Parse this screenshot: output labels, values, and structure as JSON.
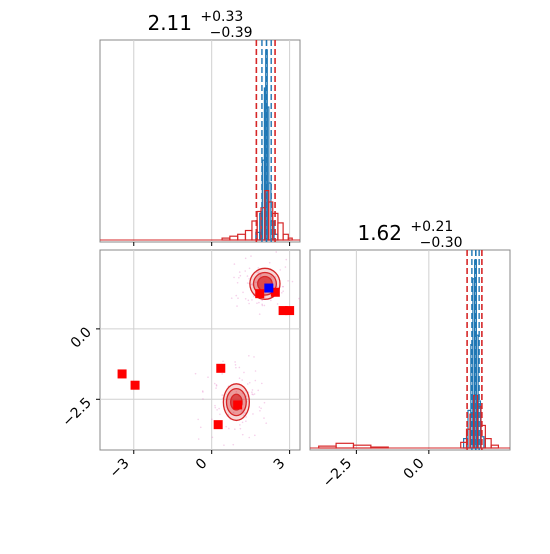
{
  "chart_data": [
    {
      "type": "histogram",
      "panel": "marginal-param-1",
      "title": {
        "value": "2.11",
        "plus": "+0.33",
        "minus": "−0.39"
      },
      "xlim": [
        -4.3,
        3.4
      ],
      "x_ticks": [
        "−3",
        "0",
        "3"
      ],
      "quantiles": {
        "lower": 1.72,
        "median": 2.11,
        "upper": 2.44
      },
      "median_line_color": "#1f77b4",
      "quantile_line_color": "#d62728",
      "series": [
        {
          "color": "#1f77b4",
          "bins": [
            {
              "x0": 1.7,
              "x1": 1.85,
              "h": 0.04
            },
            {
              "x0": 1.85,
              "x1": 1.95,
              "h": 0.14
            },
            {
              "x0": 1.95,
              "x1": 2.03,
              "h": 0.42
            },
            {
              "x0": 2.03,
              "x1": 2.08,
              "h": 0.8
            },
            {
              "x0": 2.08,
              "x1": 2.14,
              "h": 1.0
            },
            {
              "x0": 2.14,
              "x1": 2.2,
              "h": 0.7
            },
            {
              "x0": 2.2,
              "x1": 2.28,
              "h": 0.3
            },
            {
              "x0": 2.28,
              "x1": 2.4,
              "h": 0.1
            },
            {
              "x0": 2.4,
              "x1": 2.55,
              "h": 0.03
            }
          ]
        },
        {
          "color": "#d62728",
          "bins": [
            {
              "x0": 0.4,
              "x1": 0.7,
              "h": 0.01
            },
            {
              "x0": 0.7,
              "x1": 1.0,
              "h": 0.02
            },
            {
              "x0": 1.0,
              "x1": 1.3,
              "h": 0.03
            },
            {
              "x0": 1.3,
              "x1": 1.55,
              "h": 0.05
            },
            {
              "x0": 1.55,
              "x1": 1.75,
              "h": 0.1
            },
            {
              "x0": 1.75,
              "x1": 1.9,
              "h": 0.15
            },
            {
              "x0": 1.9,
              "x1": 2.05,
              "h": 0.17
            },
            {
              "x0": 2.05,
              "x1": 2.2,
              "h": 0.26
            },
            {
              "x0": 2.2,
              "x1": 2.35,
              "h": 0.2
            },
            {
              "x0": 2.35,
              "x1": 2.55,
              "h": 0.14
            },
            {
              "x0": 2.55,
              "x1": 2.75,
              "h": 0.09
            },
            {
              "x0": 2.75,
              "x1": 2.95,
              "h": 0.03
            },
            {
              "x0": 2.95,
              "x1": 3.1,
              "h": 0.01
            }
          ]
        }
      ]
    },
    {
      "type": "scatter",
      "panel": "joint-param-1-vs-param-2",
      "xlim": [
        -4.3,
        3.4
      ],
      "ylim": [
        -4.3,
        2.8
      ],
      "x_ticks": [
        "−3",
        "0",
        "3"
      ],
      "y_ticks": [
        "−2.5",
        "0.0"
      ],
      "grid": true,
      "contours": [
        {
          "color": "#d62728",
          "center": [
            2.05,
            1.6
          ],
          "radii": [
            [
              0.58,
              0.55
            ],
            [
              0.44,
              0.4
            ],
            [
              0.28,
              0.26
            ]
          ]
        },
        {
          "color": "#d62728",
          "center": [
            0.95,
            -2.6
          ],
          "radii": [
            [
              0.5,
              0.65
            ],
            [
              0.38,
              0.48
            ],
            [
              0.22,
              0.28
            ]
          ]
        }
      ],
      "red_points": [
        [
          -3.45,
          -1.6
        ],
        [
          -2.95,
          -2.0
        ],
        [
          0.35,
          -1.4
        ],
        [
          1.0,
          -2.7
        ],
        [
          0.25,
          -3.4
        ],
        [
          1.85,
          1.25
        ],
        [
          2.45,
          1.3
        ],
        [
          2.75,
          0.65
        ],
        [
          3.0,
          0.65
        ]
      ],
      "blue_points": [
        [
          2.2,
          1.45
        ]
      ],
      "red_color": "#ff0000",
      "blue_color": "#0000ff",
      "cluster_centers": [
        [
          2.05,
          1.6
        ],
        [
          0.95,
          -2.6
        ]
      ]
    },
    {
      "type": "histogram",
      "panel": "marginal-param-2",
      "title": {
        "value": "1.62",
        "plus": "+0.21",
        "minus": "−0.30"
      },
      "xlim": [
        -4.1,
        2.8
      ],
      "x_ticks": [
        "−2.5",
        "0.0"
      ],
      "quantiles": {
        "lower": 1.32,
        "median": 1.62,
        "upper": 1.83
      },
      "median_line_color": "#1f77b4",
      "quantile_line_color": "#d62728",
      "series": [
        {
          "color": "#1f77b4",
          "bins": [
            {
              "x0": 1.2,
              "x1": 1.35,
              "h": 0.05
            },
            {
              "x0": 1.35,
              "x1": 1.45,
              "h": 0.2
            },
            {
              "x0": 1.45,
              "x1": 1.52,
              "h": 0.55
            },
            {
              "x0": 1.52,
              "x1": 1.58,
              "h": 0.9
            },
            {
              "x0": 1.58,
              "x1": 1.64,
              "h": 1.0
            },
            {
              "x0": 1.64,
              "x1": 1.7,
              "h": 0.6
            },
            {
              "x0": 1.7,
              "x1": 1.78,
              "h": 0.25
            },
            {
              "x0": 1.78,
              "x1": 1.9,
              "h": 0.06
            }
          ]
        },
        {
          "color": "#d62728",
          "bins": [
            {
              "x0": -3.8,
              "x1": -3.2,
              "h": 0.01
            },
            {
              "x0": -3.2,
              "x1": -2.6,
              "h": 0.025
            },
            {
              "x0": -2.6,
              "x1": -2.0,
              "h": 0.015
            },
            {
              "x0": -2.0,
              "x1": -1.4,
              "h": 0.005
            },
            {
              "x0": 1.1,
              "x1": 1.3,
              "h": 0.03
            },
            {
              "x0": 1.3,
              "x1": 1.42,
              "h": 0.1
            },
            {
              "x0": 1.42,
              "x1": 1.55,
              "h": 0.18
            },
            {
              "x0": 1.55,
              "x1": 1.68,
              "h": 0.28
            },
            {
              "x0": 1.68,
              "x1": 1.8,
              "h": 0.22
            },
            {
              "x0": 1.8,
              "x1": 1.95,
              "h": 0.12
            },
            {
              "x0": 1.95,
              "x1": 2.15,
              "h": 0.05
            },
            {
              "x0": 2.15,
              "x1": 2.4,
              "h": 0.015
            }
          ]
        }
      ]
    }
  ]
}
